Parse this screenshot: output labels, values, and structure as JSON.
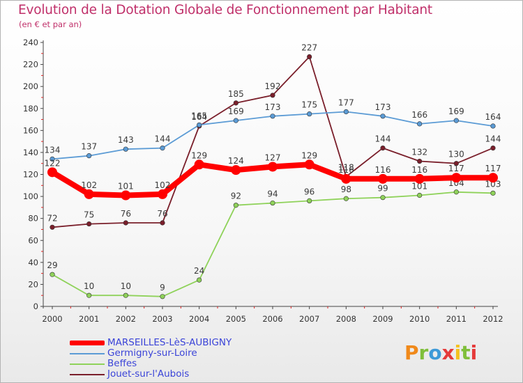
{
  "title": "Evolution de la Dotation Globale de Fonctionnement par Habitant",
  "subtitle": "(en € et par an)",
  "brand": {
    "letters": [
      "P",
      "r",
      "o",
      "x",
      "i",
      "t",
      "i"
    ],
    "colors": [
      "#f0891a",
      "#7fbf3b",
      "#3d9ad8",
      "#e53a3a",
      "#f4c11e",
      "#7fbf3b",
      "#e53a3a"
    ]
  },
  "chart_data": {
    "type": "line",
    "title": "Evolution de la Dotation Globale de Fonctionnement par Habitant",
    "subtitle": "(en € et par an)",
    "xlabel": "",
    "ylabel": "",
    "ylim": [
      0,
      240
    ],
    "yticks": [
      0,
      20,
      40,
      60,
      80,
      100,
      120,
      140,
      160,
      180,
      200,
      220,
      240
    ],
    "x": [
      "2000",
      "2001",
      "2002",
      "2003",
      "2004",
      "2005",
      "2006",
      "2007",
      "2008",
      "2009",
      "2010",
      "2011",
      "2012"
    ],
    "legend_position": "bottom-left",
    "grid": false,
    "series": [
      {
        "name": "Jouet-sur-l'Aubois",
        "color": "#7a1f2b",
        "emphasis": false,
        "values": [
          72,
          75,
          76,
          76,
          164,
          185,
          192,
          227,
          118,
          144,
          132,
          130,
          144
        ],
        "value_labels": [
          "72",
          "75",
          "76",
          "76",
          "164",
          "185",
          "192",
          "227",
          "118",
          "144",
          "132",
          "130",
          "144"
        ]
      },
      {
        "name": "Beffes",
        "color": "#8fd25a",
        "emphasis": false,
        "values": [
          29,
          10,
          10,
          9,
          24,
          92,
          94,
          96,
          98,
          99,
          101,
          104,
          103
        ],
        "value_labels": [
          "29",
          "10",
          "10",
          "9",
          "24",
          "92",
          "94",
          "96",
          "98",
          "99",
          "101",
          "104",
          "103"
        ]
      },
      {
        "name": "Germigny-sur-Loire",
        "color": "#5b9bd5",
        "emphasis": false,
        "values": [
          134,
          137,
          143,
          144,
          165,
          169,
          173,
          175,
          177,
          173,
          166,
          169,
          164
        ],
        "value_labels": [
          "134",
          "137",
          "143",
          "144",
          "165",
          "169",
          "173",
          "175",
          "177",
          "173",
          "166",
          "169",
          "164"
        ]
      },
      {
        "name": "MARSEILLES-LèS-AUBIGNY",
        "color": "#ff0000",
        "emphasis": true,
        "values": [
          122,
          102,
          101,
          102,
          129,
          124,
          127,
          129,
          116,
          116,
          116,
          117,
          117
        ],
        "value_labels": [
          "122",
          "102",
          "101",
          "102",
          "129",
          "124",
          "127",
          "129",
          "116",
          "116",
          "116",
          "117",
          "117"
        ]
      }
    ],
    "legend": [
      "MARSEILLES-LèS-AUBIGNY",
      "Germigny-sur-Loire",
      "Beffes",
      "Jouet-sur-l'Aubois"
    ]
  }
}
